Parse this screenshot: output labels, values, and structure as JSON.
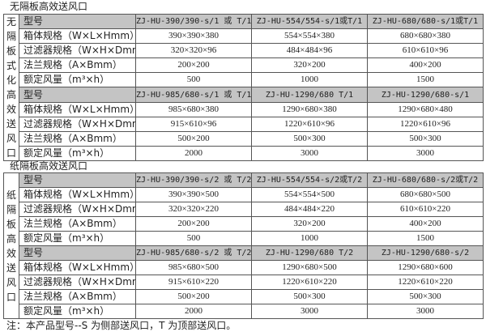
{
  "row_labels": [
    "型号",
    "箱体规格（W×L×Hmm）",
    "过滤器规格（W×H×Dmm）",
    "法兰规格（A×Bmm）",
    "额定风量（m³×h）"
  ],
  "sections": [
    {
      "title": "无隔板高效送风口",
      "side_label": [
        "无",
        "隔",
        "板",
        "式",
        "化",
        "高",
        "效",
        "送",
        "风",
        "口"
      ],
      "groups": [
        {
          "models": [
            "ZJ-HU-390/390-s/1 或 T/1",
            "ZJ-HU-554/554-s/1或T/1",
            "ZJ-HU-680/680-s/1或T/1"
          ],
          "box": [
            "390×390×380",
            "554×554×380",
            "680×680×380"
          ],
          "filter": [
            "320×320×96",
            "484×484×96",
            "610×610×96"
          ],
          "flange": [
            "200×200",
            "320×200",
            "400×200"
          ],
          "airflow": [
            "500",
            "1000",
            "1500"
          ]
        },
        {
          "models": [
            "ZJ-HU-985/680-s/1 或 T/1",
            "ZJ-HU-1290/680 T/1",
            "ZJ-HU-1290/680-s/1"
          ],
          "box": [
            "985×680×380",
            "1290×680×380",
            "1290×680×480"
          ],
          "filter": [
            "915×610×96",
            "1220×610×96",
            "1220×610×96"
          ],
          "flange": [
            "500×200",
            "500×300",
            "500×300"
          ],
          "airflow": [
            "2000",
            "3000",
            "3000"
          ]
        }
      ]
    },
    {
      "title": "纸隔板高效送风口",
      "side_label": [
        "纸",
        "隔",
        "板",
        "高",
        "效",
        "送",
        "风",
        "口"
      ],
      "groups": [
        {
          "models": [
            "ZJ-HU-390/390-s/2 或 T/2",
            "ZJ-HU-554/554-s/2或T/2",
            "ZJ-HU-680/680-s/2或T/2"
          ],
          "box": [
            "390×390×500",
            "554×554×500",
            "680×680×500"
          ],
          "filter": [
            "320×320×220",
            "484×484×220",
            "610×610×220"
          ],
          "flange": [
            "200×200",
            "320×200",
            "400×200"
          ],
          "airflow": [
            "500",
            "1000",
            "1500"
          ]
        },
        {
          "models": [
            "ZJ-HU-985/680-s/2 或 T/2",
            "ZJ-HU-1290/680 T/2",
            "ZJ-HU-1290/680-s/2"
          ],
          "box": [
            "985×680×500",
            "1290×680×500",
            "1290×680×600"
          ],
          "filter": [
            "915×610×220",
            "1220×610×220",
            "1220×610×220"
          ],
          "flange": [
            "500×200",
            "500×300",
            "500×300"
          ],
          "airflow": [
            "2000",
            "3000",
            "3000"
          ]
        }
      ]
    }
  ],
  "note": "注：本产品型号--S 为侧部送风口，T 为顶部送风口。"
}
